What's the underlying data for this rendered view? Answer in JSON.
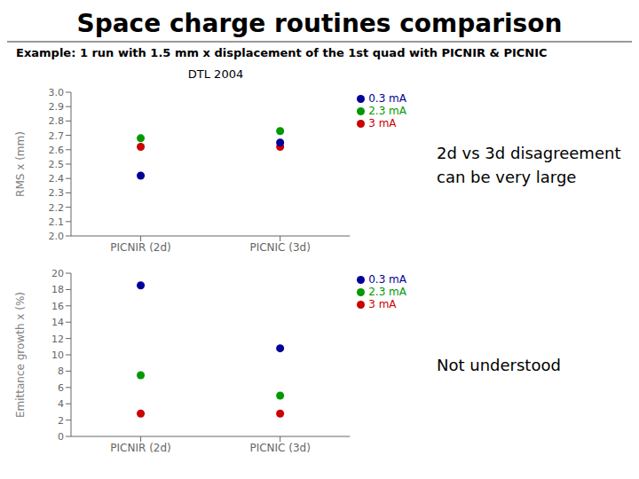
{
  "title": "Space charge routines comparison",
  "subtitle": "Example: 1 run with 1.5 mm x displacement of the 1st quad with PICNIR & PICNIC",
  "chart_data": [
    {
      "type": "scatter",
      "title": "DTL 2004",
      "y_label": "RMS x (mm)",
      "categories": [
        "PICNIR (2d)",
        "PICNIC (3d)"
      ],
      "series": [
        {
          "name": "3 mA",
          "color": "#cc0000",
          "values": [
            2.62,
            2.62
          ]
        },
        {
          "name": "2.3 mA",
          "color": "#009900",
          "values": [
            2.68,
            2.73
          ]
        },
        {
          "name": "0.3 mA",
          "color": "#000099",
          "values": [
            2.42,
            2.65
          ]
        }
      ],
      "ylim": [
        2.0,
        3.0
      ],
      "yticks": [
        {
          "value": 2.0,
          "label": "2.0"
        },
        2.1,
        2.2,
        2.3,
        2.4,
        2.5,
        2.6,
        2.7,
        2.8,
        2.9,
        {
          "value": 3.0,
          "label": "3.0"
        }
      ],
      "legend": "upper right",
      "grid": false,
      "annotation": "2d vs 3d disagreement\ncan be very large"
    },
    {
      "type": "scatter",
      "y_label": "Emittance growth x (%)",
      "categories": [
        "PICNIR (2d)",
        "PICNIC (3d)"
      ],
      "series": [
        {
          "name": "3 mA",
          "color": "#cc0000",
          "values": [
            2.8,
            2.8
          ]
        },
        {
          "name": "2.3 mA",
          "color": "#009900",
          "values": [
            7.5,
            5.0
          ]
        },
        {
          "name": "0.3 mA",
          "color": "#000099",
          "values": [
            18.5,
            10.8
          ]
        }
      ],
      "ylim": [
        0,
        20
      ],
      "yticks": [
        0,
        2,
        4,
        6,
        8,
        10,
        12,
        14,
        16,
        18,
        20
      ],
      "legend": "upper right",
      "grid": false,
      "annotation": "Not understood"
    }
  ]
}
